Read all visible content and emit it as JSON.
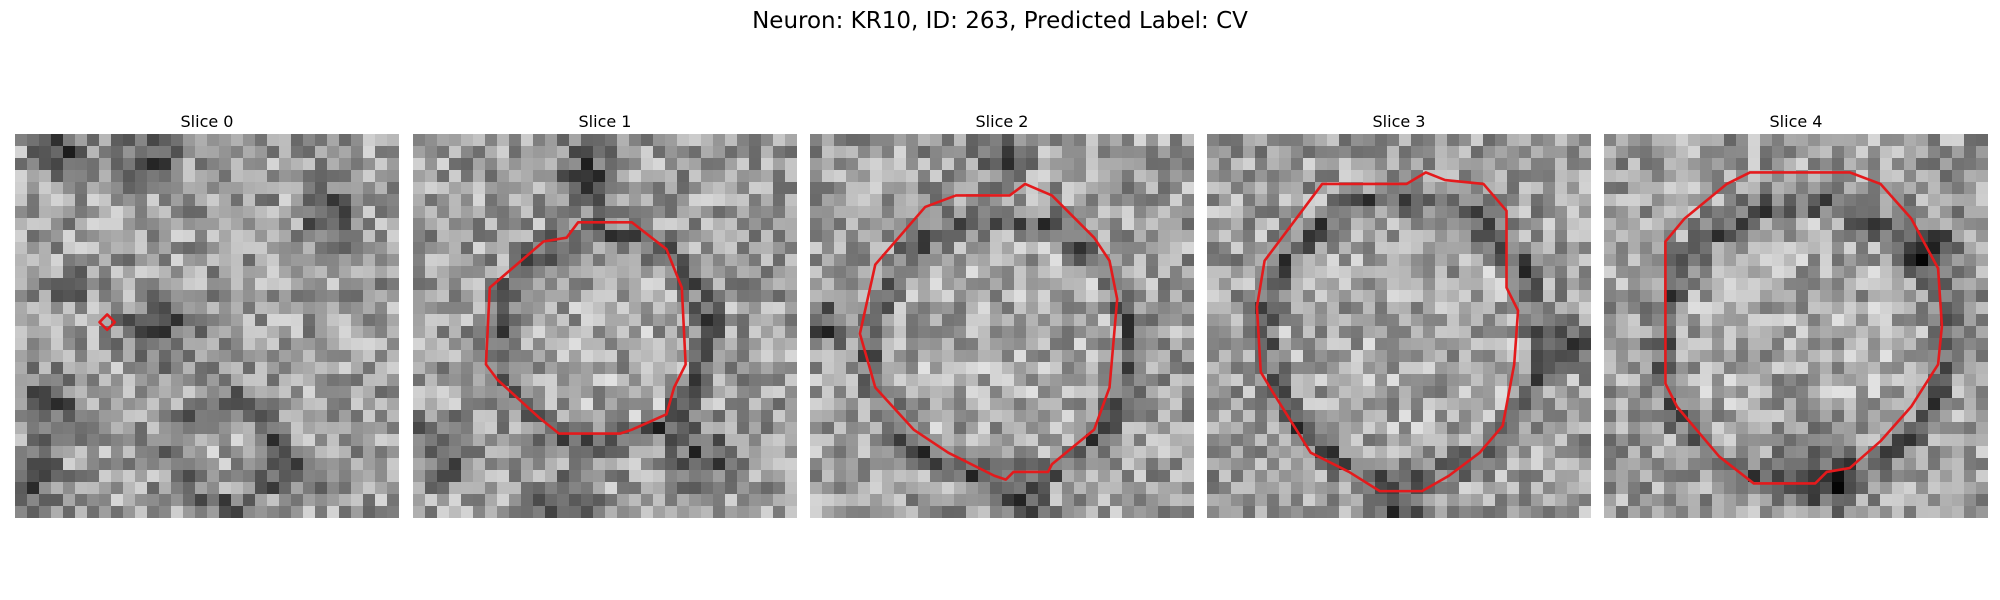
{
  "figure": {
    "title": "Neuron: KR10, ID: 263, Predicted Label: CV"
  },
  "panels": [
    {
      "title": "Slice 0",
      "seed": 11,
      "outline_color": "#e41a1c",
      "texture": {
        "dark_blobs": [
          [
            0.12,
            0.05,
            0.1
          ],
          [
            0.35,
            0.06,
            0.12
          ],
          [
            0.38,
            0.52,
            0.14
          ],
          [
            0.08,
            0.7,
            0.12
          ],
          [
            0.05,
            0.9,
            0.1
          ],
          [
            0.75,
            0.88,
            0.08
          ],
          [
            0.82,
            0.22,
            0.1
          ],
          [
            0.15,
            0.4,
            0.06
          ]
        ],
        "rings": [
          [
            0.55,
            0.83,
            0.27
          ]
        ]
      },
      "outline": [
        [
          0.22,
          0.49
        ],
        [
          0.24,
          0.51
        ],
        [
          0.26,
          0.49
        ],
        [
          0.24,
          0.47
        ]
      ]
    },
    {
      "title": "Slice 1",
      "seed": 23,
      "outline_color": "#e41a1c",
      "texture": {
        "dark_blobs": [
          [
            0.45,
            0.1,
            0.12
          ],
          [
            0.08,
            0.82,
            0.12
          ],
          [
            0.75,
            0.85,
            0.12
          ],
          [
            0.4,
            0.95,
            0.1
          ]
        ],
        "rings": [
          [
            0.5,
            0.53,
            0.55
          ]
        ]
      },
      "outline": [
        [
          0.2,
          0.4
        ],
        [
          0.34,
          0.28
        ],
        [
          0.4,
          0.27
        ],
        [
          0.43,
          0.23
        ],
        [
          0.57,
          0.23
        ],
        [
          0.66,
          0.3
        ],
        [
          0.7,
          0.4
        ],
        [
          0.71,
          0.6
        ],
        [
          0.68,
          0.66
        ],
        [
          0.66,
          0.73
        ],
        [
          0.57,
          0.77
        ],
        [
          0.54,
          0.78
        ],
        [
          0.38,
          0.78
        ],
        [
          0.33,
          0.74
        ],
        [
          0.22,
          0.64
        ],
        [
          0.19,
          0.6
        ]
      ]
    },
    {
      "title": "Slice 2",
      "seed": 37,
      "outline_color": "#e41a1c",
      "texture": {
        "dark_blobs": [
          [
            0.5,
            0.05,
            0.1
          ],
          [
            0.55,
            0.98,
            0.1
          ],
          [
            0.05,
            0.5,
            0.08
          ]
        ],
        "rings": [
          [
            0.5,
            0.56,
            0.68
          ]
        ]
      },
      "outline": [
        [
          0.13,
          0.52
        ],
        [
          0.17,
          0.34
        ],
        [
          0.3,
          0.19
        ],
        [
          0.38,
          0.16
        ],
        [
          0.52,
          0.16
        ],
        [
          0.56,
          0.13
        ],
        [
          0.63,
          0.16
        ],
        [
          0.74,
          0.27
        ],
        [
          0.78,
          0.33
        ],
        [
          0.8,
          0.43
        ],
        [
          0.78,
          0.66
        ],
        [
          0.74,
          0.77
        ],
        [
          0.63,
          0.86
        ],
        [
          0.62,
          0.88
        ],
        [
          0.53,
          0.88
        ],
        [
          0.51,
          0.9
        ],
        [
          0.48,
          0.89
        ],
        [
          0.36,
          0.83
        ],
        [
          0.27,
          0.77
        ],
        [
          0.17,
          0.66
        ]
      ]
    },
    {
      "title": "Slice 3",
      "seed": 53,
      "outline_color": "#e41a1c",
      "texture": {
        "dark_blobs": [
          [
            0.95,
            0.55,
            0.08
          ],
          [
            0.5,
            0.99,
            0.1
          ]
        ],
        "rings": [
          [
            0.51,
            0.53,
            0.72
          ]
        ]
      },
      "outline": [
        [
          0.13,
          0.45
        ],
        [
          0.15,
          0.33
        ],
        [
          0.3,
          0.13
        ],
        [
          0.52,
          0.13
        ],
        [
          0.57,
          0.1
        ],
        [
          0.62,
          0.12
        ],
        [
          0.72,
          0.13
        ],
        [
          0.78,
          0.2
        ],
        [
          0.78,
          0.4
        ],
        [
          0.81,
          0.46
        ],
        [
          0.8,
          0.6
        ],
        [
          0.77,
          0.76
        ],
        [
          0.71,
          0.83
        ],
        [
          0.63,
          0.89
        ],
        [
          0.56,
          0.93
        ],
        [
          0.45,
          0.93
        ],
        [
          0.37,
          0.88
        ],
        [
          0.27,
          0.83
        ],
        [
          0.17,
          0.67
        ],
        [
          0.14,
          0.62
        ]
      ]
    },
    {
      "title": "Slice 4",
      "seed": 71,
      "outline_color": "#e41a1c",
      "texture": {
        "dark_blobs": [
          [
            0.55,
            0.88,
            0.16
          ],
          [
            0.85,
            0.3,
            0.1
          ]
        ],
        "rings": [
          [
            0.52,
            0.55,
            0.74
          ]
        ]
      },
      "outline": [
        [
          0.16,
          0.36
        ],
        [
          0.16,
          0.28
        ],
        [
          0.21,
          0.22
        ],
        [
          0.32,
          0.13
        ],
        [
          0.38,
          0.1
        ],
        [
          0.64,
          0.1
        ],
        [
          0.72,
          0.13
        ],
        [
          0.8,
          0.22
        ],
        [
          0.87,
          0.35
        ],
        [
          0.88,
          0.5
        ],
        [
          0.87,
          0.6
        ],
        [
          0.8,
          0.71
        ],
        [
          0.72,
          0.8
        ],
        [
          0.64,
          0.87
        ],
        [
          0.58,
          0.88
        ],
        [
          0.55,
          0.91
        ],
        [
          0.39,
          0.91
        ],
        [
          0.3,
          0.84
        ],
        [
          0.19,
          0.71
        ],
        [
          0.16,
          0.65
        ]
      ]
    }
  ]
}
